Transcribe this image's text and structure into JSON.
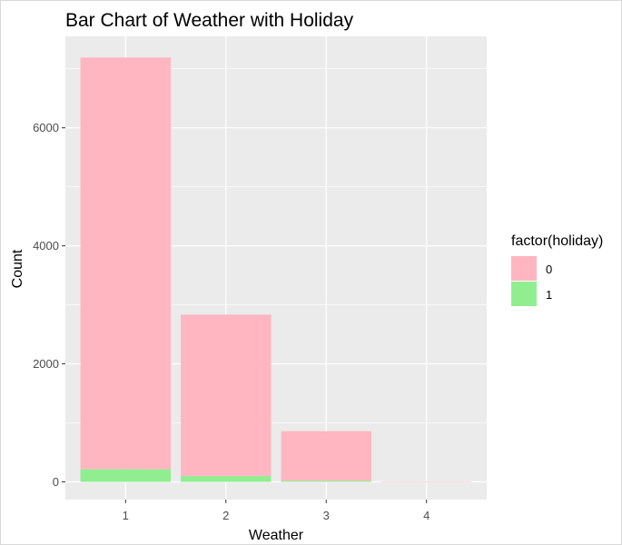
{
  "chart_data": {
    "type": "bar",
    "stacked": true,
    "title": "Bar Chart of Weather with Holiday",
    "xlabel": "Weather",
    "ylabel": "Count",
    "categories": [
      "1",
      "2",
      "3",
      "4"
    ],
    "yticks": [
      0,
      2000,
      4000,
      6000
    ],
    "ylim": [
      -300,
      7550
    ],
    "grid": true,
    "legend": {
      "title": "factor(holiday)",
      "placement": "right"
    },
    "series": [
      {
        "name": "0",
        "color": "#ffb6c1",
        "values": [
          6978,
          2735,
          839,
          1
        ]
      },
      {
        "name": "1",
        "color": "#90ee90",
        "values": [
          214,
          99,
          20,
          0
        ]
      }
    ],
    "panel_background": "#ebebeb",
    "grid_color": "#ffffff"
  }
}
